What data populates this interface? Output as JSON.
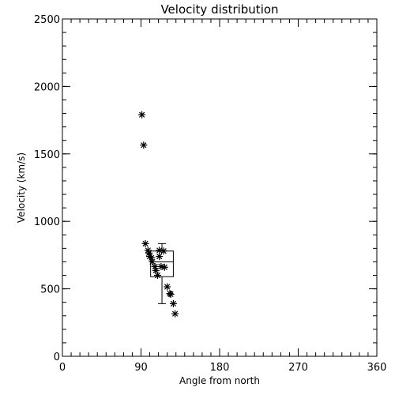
{
  "chart_data": {
    "type": "scatter",
    "title": "Velocity distribution",
    "xlabel": "Angle from north",
    "ylabel": "Velocity (km/s)",
    "xlim": [
      0,
      360
    ],
    "ylim": [
      0,
      2500
    ],
    "xticks": [
      0,
      90,
      180,
      270,
      360
    ],
    "yticks": [
      0,
      500,
      1000,
      1500,
      2000,
      2500
    ],
    "x_minor_step": 10,
    "y_minor_step": 100,
    "marker": "asterisk",
    "grid": false,
    "points": [
      {
        "x": 91,
        "y": 1790
      },
      {
        "x": 93,
        "y": 1565
      },
      {
        "x": 95,
        "y": 835
      },
      {
        "x": 98,
        "y": 785
      },
      {
        "x": 99,
        "y": 765
      },
      {
        "x": 100,
        "y": 740
      },
      {
        "x": 102,
        "y": 730
      },
      {
        "x": 103,
        "y": 700
      },
      {
        "x": 106,
        "y": 665
      },
      {
        "x": 107,
        "y": 635
      },
      {
        "x": 109,
        "y": 600
      },
      {
        "x": 111,
        "y": 785
      },
      {
        "x": 111,
        "y": 740
      },
      {
        "x": 113,
        "y": 665
      },
      {
        "x": 116,
        "y": 780
      },
      {
        "x": 117,
        "y": 660
      },
      {
        "x": 120,
        "y": 515
      },
      {
        "x": 123,
        "y": 465
      },
      {
        "x": 124,
        "y": 460
      },
      {
        "x": 127,
        "y": 390
      },
      {
        "x": 129,
        "y": 315
      }
    ],
    "boxplot": {
      "x_left": 101,
      "x_right": 127,
      "whisker_x": 114,
      "q1": 590,
      "median": 700,
      "q3": 780,
      "whisker_low": 390,
      "whisker_high": 835
    }
  }
}
